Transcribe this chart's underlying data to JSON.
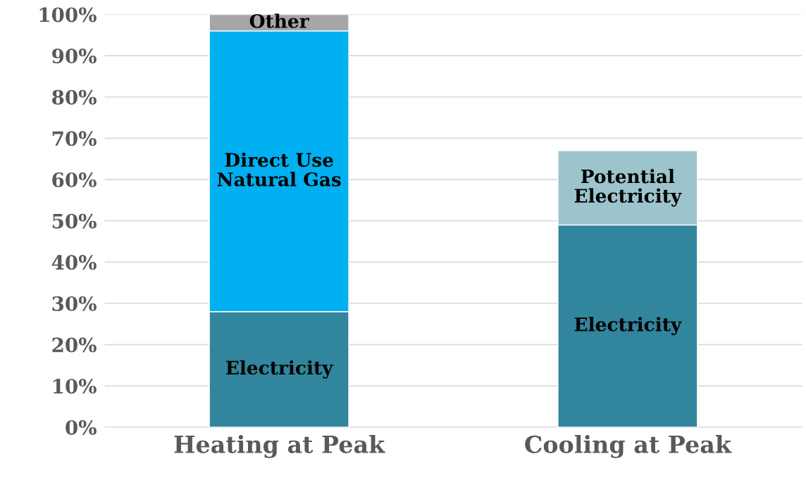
{
  "chart_data": {
    "type": "bar",
    "stacked": true,
    "categories": [
      "Heating at Peak",
      "Cooling at Peak"
    ],
    "series": [
      {
        "name": "Electricity",
        "color": "#31859c",
        "values": [
          28,
          49
        ]
      },
      {
        "name": "Direct Use\nNatural Gas",
        "color": "#00b0f0",
        "values": [
          68,
          null
        ]
      },
      {
        "name": "Other",
        "color": "#a6a6a6",
        "values": [
          4,
          null
        ]
      },
      {
        "name": "Potential\nElectricity",
        "color": "#9cc4cd",
        "values": [
          null,
          18
        ]
      }
    ],
    "ylim": [
      0,
      100
    ],
    "yticks": [
      {
        "value": 0,
        "label": "0%"
      },
      {
        "value": 10,
        "label": "10%"
      },
      {
        "value": 20,
        "label": "20%"
      },
      {
        "value": 30,
        "label": "30%"
      },
      {
        "value": 40,
        "label": "40%"
      },
      {
        "value": 50,
        "label": "50%"
      },
      {
        "value": 60,
        "label": "60%"
      },
      {
        "value": 70,
        "label": "70%"
      },
      {
        "value": 80,
        "label": "80%"
      },
      {
        "value": 90,
        "label": "90%"
      },
      {
        "value": 100,
        "label": "100%"
      }
    ],
    "grid": "y",
    "legend": false
  }
}
